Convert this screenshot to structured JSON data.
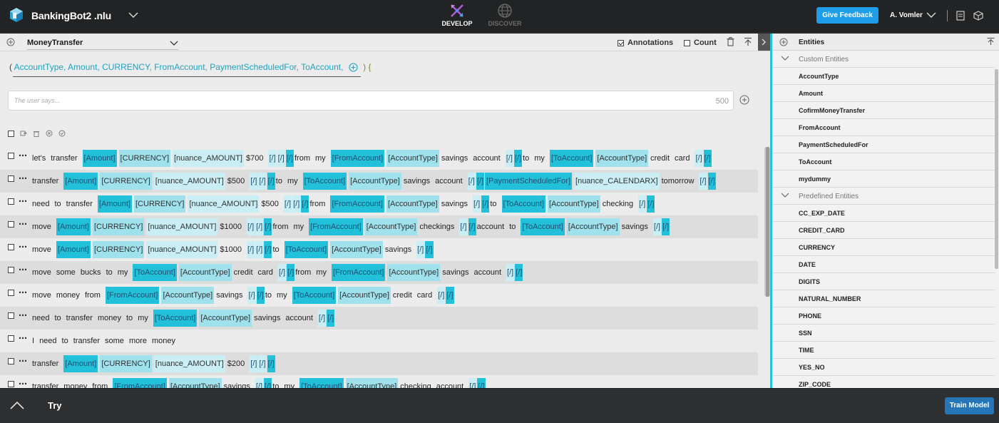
{
  "header": {
    "app_name": "BankingBot2",
    "app_ext": ".nlu",
    "mode_develop": "DEVELOP",
    "mode_discover": "DISCOVER",
    "feedback_label": "Give Feedback",
    "user_name": "A. Vomler"
  },
  "intent_bar": {
    "intent_name": "MoneyTransfer",
    "annotations_label": "Annotations",
    "annotations_checked": true,
    "count_label": "Count",
    "count_checked": false
  },
  "params": {
    "open_paren": "(",
    "list": "AccountType, Amount, CURRENCY, FromAccount, PaymentScheduledFor, ToAccount,",
    "close": ") {"
  },
  "input": {
    "placeholder": "The user says...",
    "char_count": "500"
  },
  "samples": [
    {
      "tokens": [
        {
          "t": "tok",
          "v": "let's"
        },
        {
          "t": "tok",
          "v": "transfer"
        },
        {
          "t": "dark",
          "v": "[Amount]"
        },
        {
          "t": "mid",
          "v": "[CURRENCY]"
        },
        {
          "t": "light",
          "v": "[nuance_AMOUNT]"
        },
        {
          "t": "tok",
          "v": "$700"
        },
        {
          "t": "close",
          "v": "[/]"
        },
        {
          "t": "close",
          "v": "[/]"
        },
        {
          "t": "closed",
          "v": "[/]"
        },
        {
          "t": "tok",
          "v": "from"
        },
        {
          "t": "tok",
          "v": "my"
        },
        {
          "t": "dark",
          "v": "[FromAccount]"
        },
        {
          "t": "mid",
          "v": "[AccountType]"
        },
        {
          "t": "tok",
          "v": "savings"
        },
        {
          "t": "tok",
          "v": "account"
        },
        {
          "t": "close",
          "v": "[/]"
        },
        {
          "t": "closed",
          "v": "[/]"
        },
        {
          "t": "tok",
          "v": "to"
        },
        {
          "t": "tok",
          "v": "my"
        },
        {
          "t": "dark",
          "v": "[ToAccount]"
        },
        {
          "t": "mid",
          "v": "[AccountType]"
        },
        {
          "t": "tok",
          "v": "credit"
        },
        {
          "t": "tok",
          "v": "card"
        },
        {
          "t": "close",
          "v": "[/]"
        },
        {
          "t": "closed",
          "v": "[/]"
        }
      ]
    },
    {
      "tokens": [
        {
          "t": "tok",
          "v": "transfer"
        },
        {
          "t": "dark",
          "v": "[Amount]"
        },
        {
          "t": "mid",
          "v": "[CURRENCY]"
        },
        {
          "t": "light",
          "v": "[nuance_AMOUNT]"
        },
        {
          "t": "tok",
          "v": "$500"
        },
        {
          "t": "close",
          "v": "[/]"
        },
        {
          "t": "close",
          "v": "[/]"
        },
        {
          "t": "closed",
          "v": "[/]"
        },
        {
          "t": "tok",
          "v": "to"
        },
        {
          "t": "tok",
          "v": "my"
        },
        {
          "t": "dark",
          "v": "[ToAccount]"
        },
        {
          "t": "mid",
          "v": "[AccountType]"
        },
        {
          "t": "tok",
          "v": "savings"
        },
        {
          "t": "tok",
          "v": "account"
        },
        {
          "t": "close",
          "v": "[/]"
        },
        {
          "t": "closed",
          "v": "[/]"
        },
        {
          "t": "dark",
          "v": "[PaymentScheduledFor]"
        },
        {
          "t": "light",
          "v": "[nuance_CALENDARX]"
        },
        {
          "t": "tok",
          "v": "tomorrow"
        },
        {
          "t": "close",
          "v": "[/]"
        },
        {
          "t": "closed",
          "v": "[/]"
        }
      ]
    },
    {
      "tokens": [
        {
          "t": "tok",
          "v": "need"
        },
        {
          "t": "tok",
          "v": "to"
        },
        {
          "t": "tok",
          "v": "transfer"
        },
        {
          "t": "dark",
          "v": "[Amount]"
        },
        {
          "t": "mid",
          "v": "[CURRENCY]"
        },
        {
          "t": "light",
          "v": "[nuance_AMOUNT]"
        },
        {
          "t": "tok",
          "v": "$500"
        },
        {
          "t": "close",
          "v": "[/]"
        },
        {
          "t": "close",
          "v": "[/]"
        },
        {
          "t": "closed",
          "v": "[/]"
        },
        {
          "t": "tok",
          "v": "from"
        },
        {
          "t": "dark",
          "v": "[FromAccount]"
        },
        {
          "t": "mid",
          "v": "[AccountType]"
        },
        {
          "t": "tok",
          "v": "savings"
        },
        {
          "t": "close",
          "v": "[/]"
        },
        {
          "t": "closed",
          "v": "[/]"
        },
        {
          "t": "tok",
          "v": "to"
        },
        {
          "t": "dark",
          "v": "[ToAccount]"
        },
        {
          "t": "mid",
          "v": "[AccountType]"
        },
        {
          "t": "tok",
          "v": "checking"
        },
        {
          "t": "close",
          "v": "[/]"
        },
        {
          "t": "closed",
          "v": "[/]"
        }
      ]
    },
    {
      "tokens": [
        {
          "t": "tok",
          "v": "move"
        },
        {
          "t": "dark",
          "v": "[Amount]"
        },
        {
          "t": "mid",
          "v": "[CURRENCY]"
        },
        {
          "t": "light",
          "v": "[nuance_AMOUNT]"
        },
        {
          "t": "tok",
          "v": "$1000"
        },
        {
          "t": "close",
          "v": "[/]"
        },
        {
          "t": "close",
          "v": "[/]"
        },
        {
          "t": "closed",
          "v": "[/]"
        },
        {
          "t": "tok",
          "v": "from"
        },
        {
          "t": "tok",
          "v": "my"
        },
        {
          "t": "dark",
          "v": "[FromAccount]"
        },
        {
          "t": "mid",
          "v": "[AccountType]"
        },
        {
          "t": "tok",
          "v": "checkings"
        },
        {
          "t": "close",
          "v": "[/]"
        },
        {
          "t": "closed",
          "v": "[/]"
        },
        {
          "t": "tok",
          "v": "account"
        },
        {
          "t": "tok",
          "v": "to"
        },
        {
          "t": "dark",
          "v": "[ToAccount]"
        },
        {
          "t": "mid",
          "v": "[AccountType]"
        },
        {
          "t": "tok",
          "v": "savings"
        },
        {
          "t": "close",
          "v": "[/]"
        },
        {
          "t": "closed",
          "v": "[/]"
        }
      ]
    },
    {
      "tokens": [
        {
          "t": "tok",
          "v": "move"
        },
        {
          "t": "dark",
          "v": "[Amount]"
        },
        {
          "t": "mid",
          "v": "[CURRENCY]"
        },
        {
          "t": "light",
          "v": "[nuance_AMOUNT]"
        },
        {
          "t": "tok",
          "v": "$1000"
        },
        {
          "t": "close",
          "v": "[/]"
        },
        {
          "t": "close",
          "v": "[/]"
        },
        {
          "t": "closed",
          "v": "[/]"
        },
        {
          "t": "tok",
          "v": "to"
        },
        {
          "t": "dark",
          "v": "[ToAccount]"
        },
        {
          "t": "mid",
          "v": "[AccountType]"
        },
        {
          "t": "tok",
          "v": "savings"
        },
        {
          "t": "close",
          "v": "[/]"
        },
        {
          "t": "closed",
          "v": "[/]"
        }
      ]
    },
    {
      "tokens": [
        {
          "t": "tok",
          "v": "move"
        },
        {
          "t": "tok",
          "v": "some"
        },
        {
          "t": "tok",
          "v": "bucks"
        },
        {
          "t": "tok",
          "v": "to"
        },
        {
          "t": "tok",
          "v": "my"
        },
        {
          "t": "dark",
          "v": "[ToAccount]"
        },
        {
          "t": "mid",
          "v": "[AccountType]"
        },
        {
          "t": "tok",
          "v": "credit"
        },
        {
          "t": "tok",
          "v": "card"
        },
        {
          "t": "close",
          "v": "[/]"
        },
        {
          "t": "closed",
          "v": "[/]"
        },
        {
          "t": "tok",
          "v": "from"
        },
        {
          "t": "tok",
          "v": "my"
        },
        {
          "t": "dark",
          "v": "[FromAccount]"
        },
        {
          "t": "mid",
          "v": "[AccountType]"
        },
        {
          "t": "tok",
          "v": "savings"
        },
        {
          "t": "tok",
          "v": "account"
        },
        {
          "t": "close",
          "v": "[/]"
        },
        {
          "t": "closed",
          "v": "[/]"
        }
      ]
    },
    {
      "tokens": [
        {
          "t": "tok",
          "v": "move"
        },
        {
          "t": "tok",
          "v": "money"
        },
        {
          "t": "tok",
          "v": "from"
        },
        {
          "t": "dark",
          "v": "[FromAccount]"
        },
        {
          "t": "mid",
          "v": "[AccountType]"
        },
        {
          "t": "tok",
          "v": "savings"
        },
        {
          "t": "close",
          "v": "[/]"
        },
        {
          "t": "closed",
          "v": "[/]"
        },
        {
          "t": "tok",
          "v": "to"
        },
        {
          "t": "tok",
          "v": "my"
        },
        {
          "t": "dark",
          "v": "[ToAccount]"
        },
        {
          "t": "mid",
          "v": "[AccountType]"
        },
        {
          "t": "tok",
          "v": "credit"
        },
        {
          "t": "tok",
          "v": "card"
        },
        {
          "t": "close",
          "v": "[/]"
        },
        {
          "t": "closed",
          "v": "[/]"
        }
      ]
    },
    {
      "tokens": [
        {
          "t": "tok",
          "v": "need"
        },
        {
          "t": "tok",
          "v": "to"
        },
        {
          "t": "tok",
          "v": "transfer"
        },
        {
          "t": "tok",
          "v": "money"
        },
        {
          "t": "tok",
          "v": "to"
        },
        {
          "t": "tok",
          "v": "my"
        },
        {
          "t": "dark",
          "v": "[ToAccount]"
        },
        {
          "t": "mid",
          "v": "[AccountType]"
        },
        {
          "t": "tok",
          "v": "savings"
        },
        {
          "t": "tok",
          "v": "account"
        },
        {
          "t": "close",
          "v": "[/]"
        },
        {
          "t": "closed",
          "v": "[/]"
        }
      ]
    },
    {
      "tokens": [
        {
          "t": "tok",
          "v": "I"
        },
        {
          "t": "tok",
          "v": "need"
        },
        {
          "t": "tok",
          "v": "to"
        },
        {
          "t": "tok",
          "v": "transfer"
        },
        {
          "t": "tok",
          "v": "some"
        },
        {
          "t": "tok",
          "v": "more"
        },
        {
          "t": "tok",
          "v": "money"
        }
      ]
    },
    {
      "tokens": [
        {
          "t": "tok",
          "v": "transfer"
        },
        {
          "t": "dark",
          "v": "[Amount]"
        },
        {
          "t": "mid",
          "v": "[CURRENCY]"
        },
        {
          "t": "light",
          "v": "[nuance_AMOUNT]"
        },
        {
          "t": "tok",
          "v": "$200"
        },
        {
          "t": "close",
          "v": "[/]"
        },
        {
          "t": "close",
          "v": "[/]"
        },
        {
          "t": "closed",
          "v": "[/]"
        }
      ]
    },
    {
      "tokens": [
        {
          "t": "tok",
          "v": "transfer"
        },
        {
          "t": "tok",
          "v": "money"
        },
        {
          "t": "tok",
          "v": "from"
        },
        {
          "t": "dark",
          "v": "[FromAccount]"
        },
        {
          "t": "mid",
          "v": "[AccountType]"
        },
        {
          "t": "tok",
          "v": "savings"
        },
        {
          "t": "close",
          "v": "[/]"
        },
        {
          "t": "closed",
          "v": "[/]"
        },
        {
          "t": "tok",
          "v": "to"
        },
        {
          "t": "tok",
          "v": "my"
        },
        {
          "t": "dark",
          "v": "[ToAccount]"
        },
        {
          "t": "mid",
          "v": "[AccountType]"
        },
        {
          "t": "tok",
          "v": "checking"
        },
        {
          "t": "tok",
          "v": "account"
        },
        {
          "t": "close",
          "v": "[/]"
        },
        {
          "t": "closed",
          "v": "[/]"
        }
      ]
    }
  ],
  "entities": {
    "title": "Entities",
    "custom_label": "Custom Entities",
    "custom": [
      "AccountType",
      "Amount",
      "CofirmMoneyTransfer",
      "FromAccount",
      "PaymentScheduledFor",
      "ToAccount",
      "mydummy"
    ],
    "predefined_label": "Predefined Entities",
    "predefined": [
      "CC_EXP_DATE",
      "CREDIT_CARD",
      "CURRENCY",
      "DATE",
      "DIGITS",
      "NATURAL_NUMBER",
      "PHONE",
      "SSN",
      "TIME",
      "YES_NO",
      "ZIP_CODE"
    ]
  },
  "bottom": {
    "try_label": "Try",
    "train_label": "Train Model"
  },
  "colors": {
    "accent": "#28c3d4",
    "entity_tag_dark": "#22c1d9",
    "entity_tag_light": "#c9eef4",
    "feedback_button": "#1e9ee8",
    "train_button": "#2476b8"
  },
  "icons": [
    "logo-icon",
    "chevron-down-icon",
    "develop-icon",
    "discover-globe-icon",
    "document-icon",
    "cube-icon",
    "add-circle-icon",
    "trash-icon",
    "collapse-up-icon",
    "chevron-right-icon",
    "move-icon",
    "cancel-circle-icon",
    "check-circle-icon",
    "chevron-up-icon"
  ]
}
